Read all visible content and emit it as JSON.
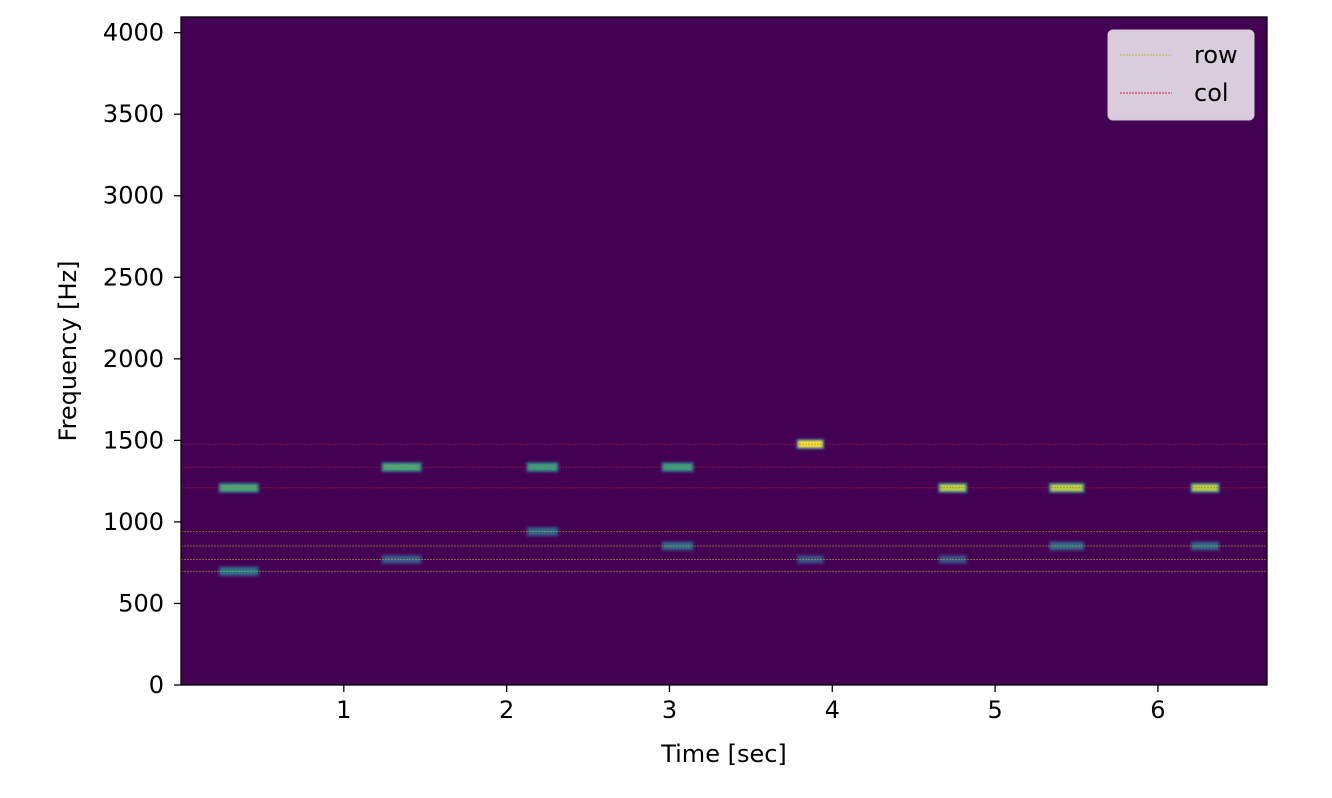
{
  "chart_data": {
    "type": "heatmap",
    "title": "",
    "xlabel": "Time [sec]",
    "ylabel": "Frequency [Hz]",
    "xlim": [
      0,
      6.67
    ],
    "ylim": [
      0,
      4096
    ],
    "xticks": [
      1,
      2,
      3,
      4,
      5,
      6
    ],
    "yticks": [
      0,
      500,
      1000,
      1500,
      2000,
      2500,
      3000,
      3500,
      4000
    ],
    "background_color": "#440154",
    "tones": [
      {
        "t_start": 0.23,
        "t_end": 0.48,
        "high_hz": 1209,
        "low_hz": 697,
        "high_intensity": 0.65,
        "low_intensity": 0.4
      },
      {
        "t_start": 1.23,
        "t_end": 1.48,
        "high_hz": 1336,
        "low_hz": 770,
        "high_intensity": 0.65,
        "low_intensity": 0.3
      },
      {
        "t_start": 2.12,
        "t_end": 2.32,
        "high_hz": 1336,
        "low_hz": 941,
        "high_intensity": 0.6,
        "low_intensity": 0.35
      },
      {
        "t_start": 2.95,
        "t_end": 3.15,
        "high_hz": 1336,
        "low_hz": 852,
        "high_intensity": 0.6,
        "low_intensity": 0.35
      },
      {
        "t_start": 3.78,
        "t_end": 3.95,
        "high_hz": 1477,
        "low_hz": 770,
        "high_intensity": 1.0,
        "low_intensity": 0.25
      },
      {
        "t_start": 4.65,
        "t_end": 4.83,
        "high_hz": 1209,
        "low_hz": 770,
        "high_intensity": 0.9,
        "low_intensity": 0.25
      },
      {
        "t_start": 5.33,
        "t_end": 5.55,
        "high_hz": 1209,
        "low_hz": 852,
        "high_intensity": 0.9,
        "low_intensity": 0.35
      },
      {
        "t_start": 6.2,
        "t_end": 6.38,
        "high_hz": 1209,
        "low_hz": 852,
        "high_intensity": 0.9,
        "low_intensity": 0.35
      }
    ],
    "reference_lines": {
      "row": {
        "values_hz": [
          697,
          770,
          852,
          941
        ],
        "color": "#bcbd22"
      },
      "col": {
        "values_hz": [
          1209,
          1336,
          1477
        ],
        "color": "#d62728"
      }
    },
    "legend": {
      "placement": "top-right",
      "entries": [
        {
          "label": "row",
          "color": "#bcbd22"
        },
        {
          "label": "col",
          "color": "#d62728"
        }
      ]
    }
  }
}
